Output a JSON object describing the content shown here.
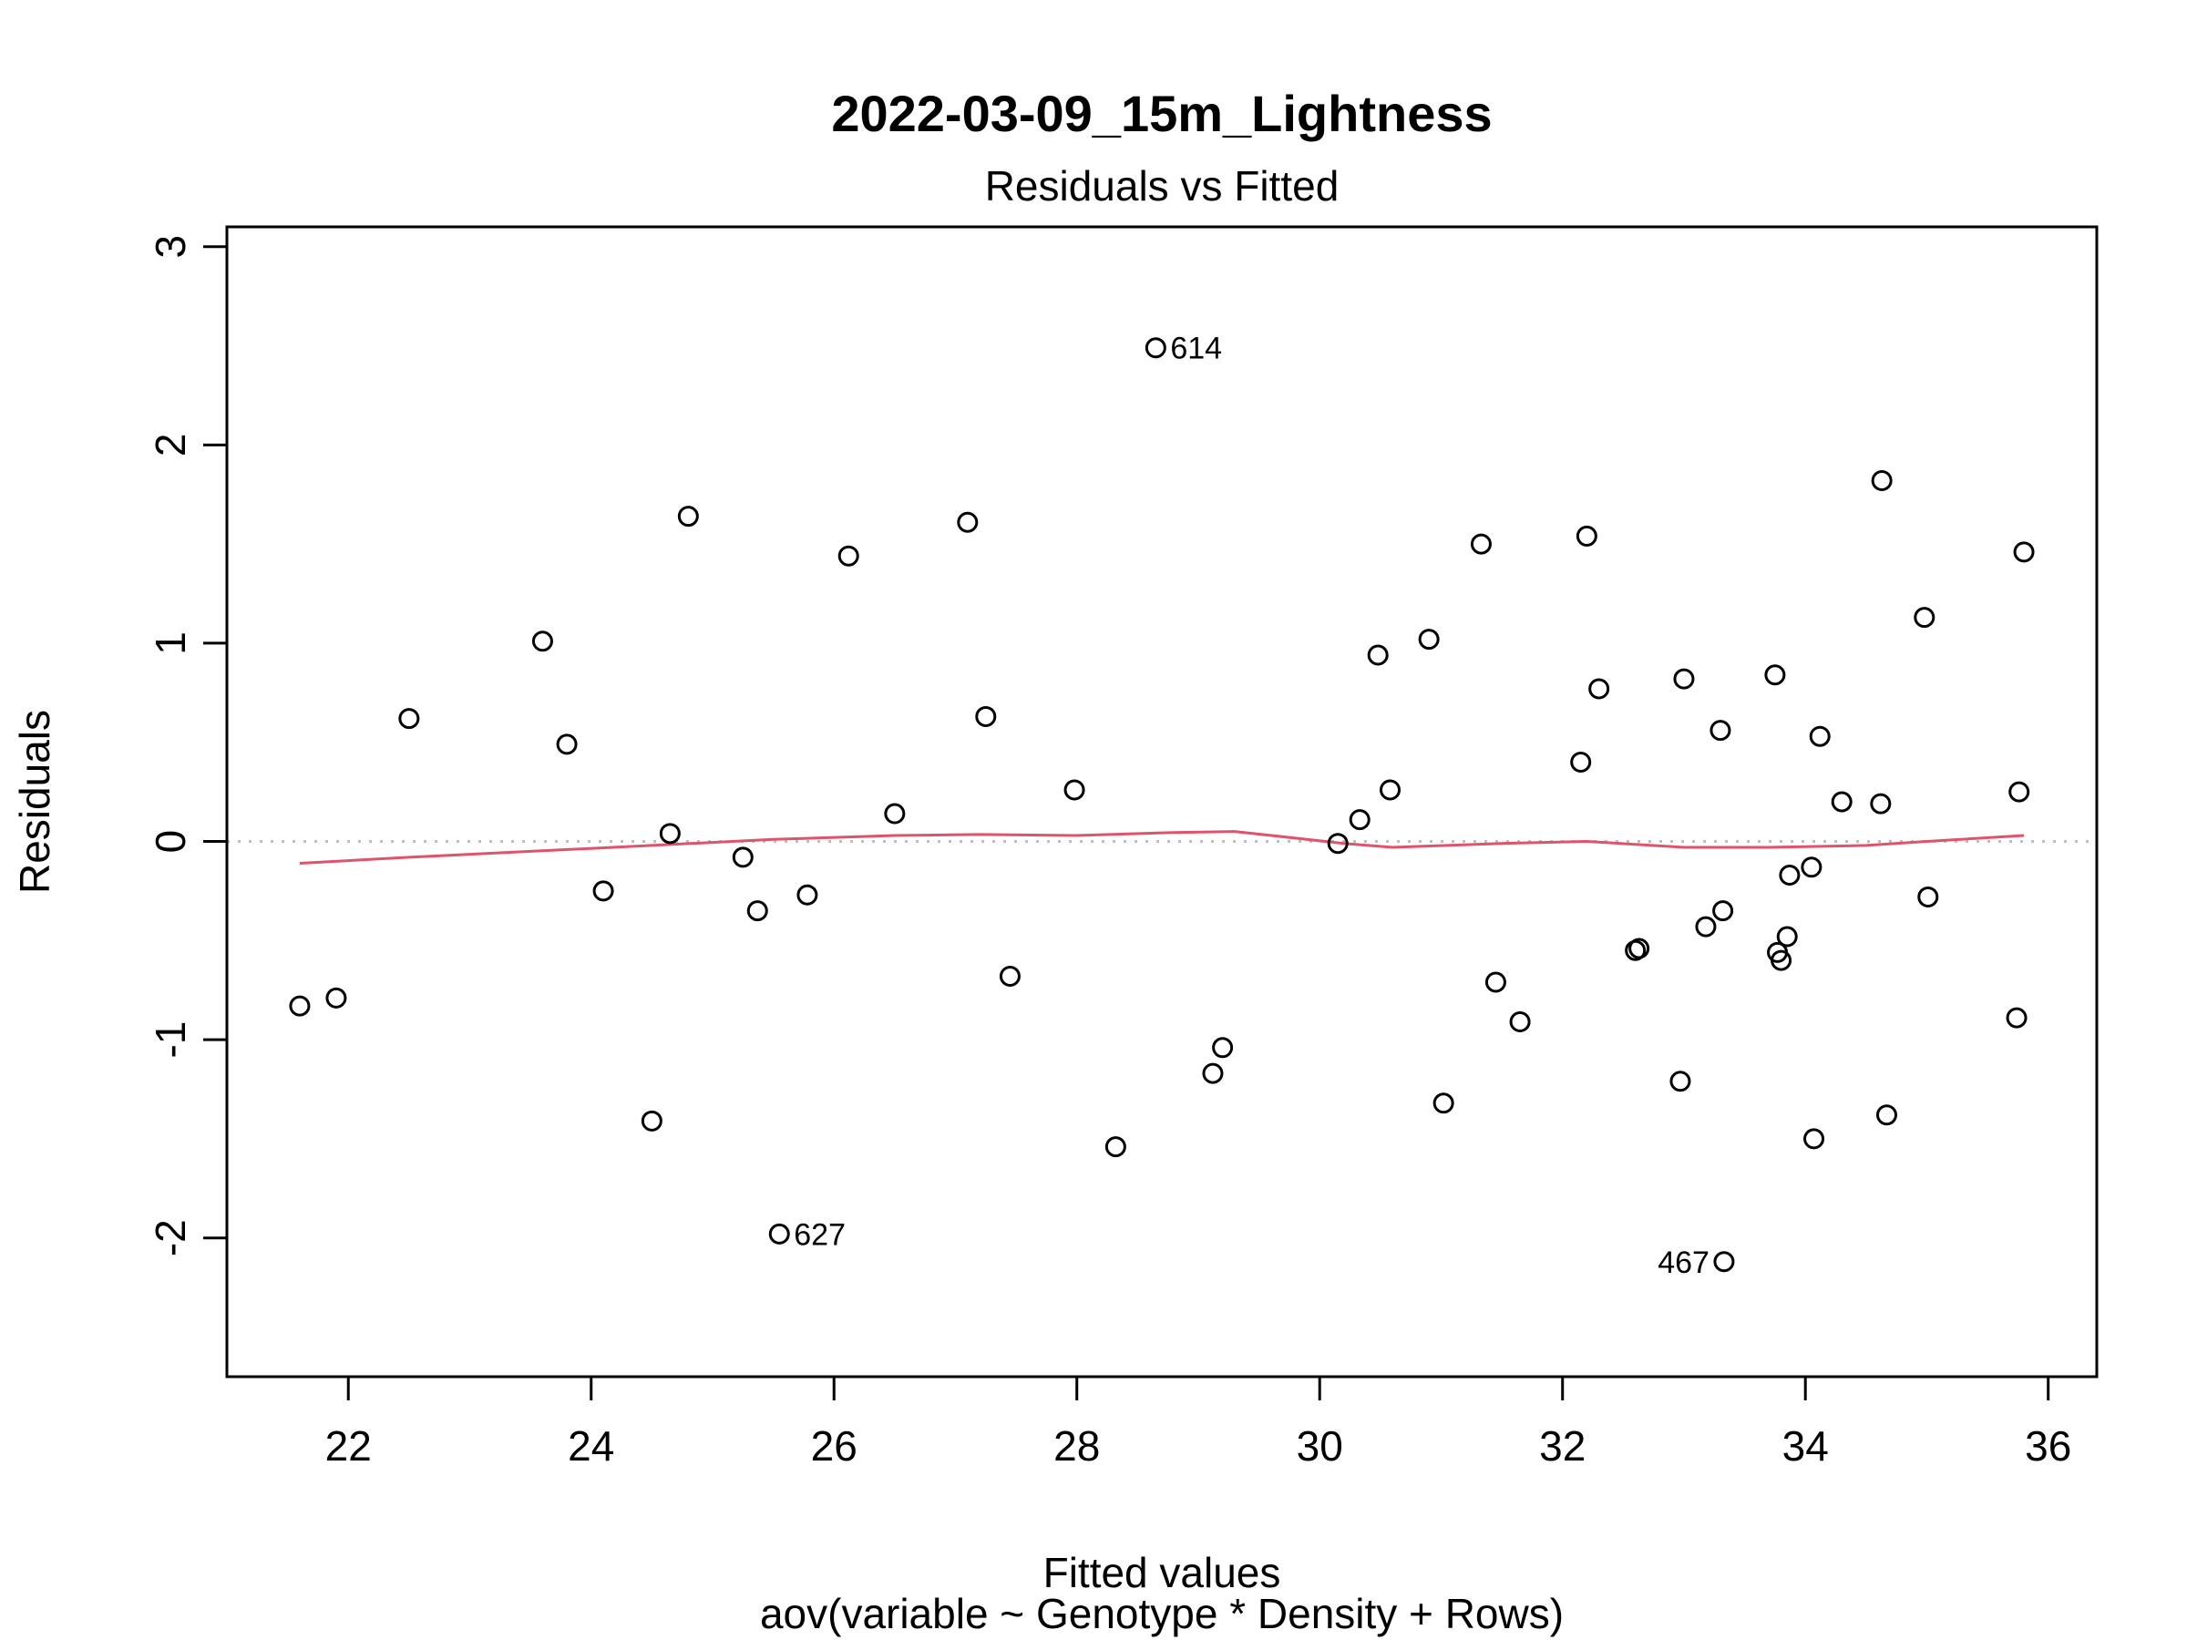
{
  "chart_data": {
    "type": "scatter",
    "title": "2022-03-09_15m_Lightness",
    "subtitle": "Residuals vs Fitted",
    "xlabel": "Fitted values",
    "caption": "aov(variable ~ Genotype * Density + Rows)",
    "ylabel": "Residuals",
    "xlim": [
      21.0,
      36.4
    ],
    "ylim": [
      -2.7,
      3.1
    ],
    "x_ticks": [
      22,
      24,
      26,
      28,
      30,
      32,
      34,
      36
    ],
    "y_ticks": [
      -2,
      -1,
      0,
      1,
      2,
      3
    ],
    "grid": false,
    "reference_line": {
      "y": 0,
      "style": "dotted",
      "color": "#bebebe"
    },
    "colors": {
      "points": "#000000",
      "smooth": "#df536b",
      "frame": "#000000"
    },
    "points": [
      {
        "x": 21.6,
        "y": -0.83
      },
      {
        "x": 21.9,
        "y": -0.79
      },
      {
        "x": 22.5,
        "y": 0.62
      },
      {
        "x": 23.6,
        "y": 1.01
      },
      {
        "x": 23.8,
        "y": 0.49
      },
      {
        "x": 24.1,
        "y": -0.25
      },
      {
        "x": 24.5,
        "y": -1.41
      },
      {
        "x": 24.65,
        "y": 0.04
      },
      {
        "x": 24.8,
        "y": 1.64
      },
      {
        "x": 25.25,
        "y": -0.08
      },
      {
        "x": 25.37,
        "y": -0.35
      },
      {
        "x": 25.55,
        "y": -1.98,
        "label": "627"
      },
      {
        "x": 25.78,
        "y": -0.27
      },
      {
        "x": 26.12,
        "y": 1.44
      },
      {
        "x": 26.5,
        "y": 0.14
      },
      {
        "x": 27.1,
        "y": 1.61
      },
      {
        "x": 27.25,
        "y": 0.63
      },
      {
        "x": 27.45,
        "y": -0.68
      },
      {
        "x": 27.98,
        "y": 0.26
      },
      {
        "x": 28.32,
        "y": -1.54
      },
      {
        "x": 28.65,
        "y": 2.49,
        "label": "614"
      },
      {
        "x": 29.12,
        "y": -1.17
      },
      {
        "x": 29.2,
        "y": -1.04
      },
      {
        "x": 30.15,
        "y": -0.01
      },
      {
        "x": 30.33,
        "y": 0.11
      },
      {
        "x": 30.48,
        "y": 0.94
      },
      {
        "x": 30.58,
        "y": 0.26
      },
      {
        "x": 30.9,
        "y": 1.02
      },
      {
        "x": 31.02,
        "y": -1.32
      },
      {
        "x": 31.33,
        "y": 1.5
      },
      {
        "x": 31.45,
        "y": -0.71
      },
      {
        "x": 31.65,
        "y": -0.91
      },
      {
        "x": 32.15,
        "y": 0.4
      },
      {
        "x": 32.2,
        "y": 1.54
      },
      {
        "x": 32.3,
        "y": 0.77
      },
      {
        "x": 32.6,
        "y": -0.55
      },
      {
        "x": 32.63,
        "y": -0.54
      },
      {
        "x": 32.97,
        "y": -1.21
      },
      {
        "x": 33.0,
        "y": 0.82
      },
      {
        "x": 33.18,
        "y": -0.43
      },
      {
        "x": 33.3,
        "y": 0.56
      },
      {
        "x": 33.32,
        "y": -0.35
      },
      {
        "x": 33.33,
        "y": -2.12,
        "label": "467"
      },
      {
        "x": 33.75,
        "y": 0.84
      },
      {
        "x": 33.77,
        "y": -0.56
      },
      {
        "x": 33.8,
        "y": -0.6
      },
      {
        "x": 33.85,
        "y": -0.48
      },
      {
        "x": 33.87,
        "y": -0.17
      },
      {
        "x": 34.05,
        "y": -0.13
      },
      {
        "x": 34.07,
        "y": -1.5
      },
      {
        "x": 34.12,
        "y": 0.53
      },
      {
        "x": 34.3,
        "y": 0.2
      },
      {
        "x": 34.62,
        "y": 0.19
      },
      {
        "x": 34.63,
        "y": 1.82
      },
      {
        "x": 34.67,
        "y": -1.38
      },
      {
        "x": 34.98,
        "y": 1.13
      },
      {
        "x": 35.01,
        "y": -0.28
      },
      {
        "x": 35.74,
        "y": -0.89
      },
      {
        "x": 35.76,
        "y": 0.25
      },
      {
        "x": 35.8,
        "y": 1.46
      }
    ],
    "smooth_line": {
      "x": [
        21.6,
        22.5,
        23.5,
        24.5,
        25.5,
        26.5,
        27.2,
        28.0,
        28.8,
        29.3,
        30.2,
        30.6,
        31.5,
        32.2,
        33.0,
        33.7,
        34.5,
        35.0,
        35.8
      ],
      "y": [
        -0.11,
        -0.08,
        -0.05,
        -0.02,
        0.01,
        0.03,
        0.035,
        0.03,
        0.045,
        0.05,
        -0.01,
        -0.03,
        -0.01,
        0.0,
        -0.03,
        -0.03,
        -0.02,
        0.0,
        0.03
      ]
    }
  }
}
